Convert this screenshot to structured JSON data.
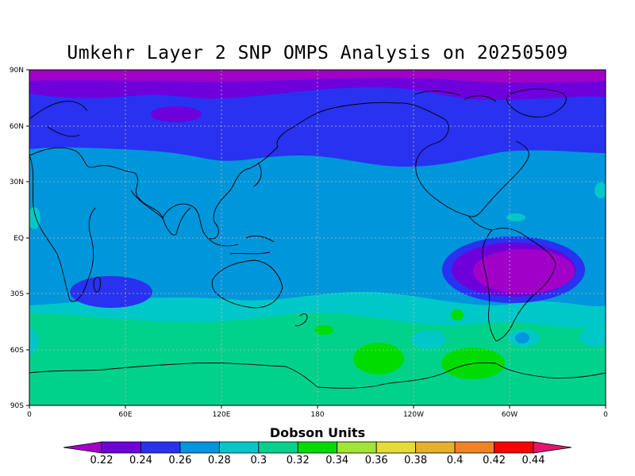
{
  "title": "Umkehr Layer 2 SNP OMPS Analysis on 20250509",
  "colorbar": {
    "title": "Dobson Units",
    "levels": [
      "0.22",
      "0.24",
      "0.26",
      "0.28",
      "0.3",
      "0.32",
      "0.34",
      "0.36",
      "0.38",
      "0.4",
      "0.42",
      "0.44"
    ],
    "colors": [
      "#a000c8",
      "#6e00dc",
      "#2832f0",
      "#0096dc",
      "#00c8c8",
      "#00d28c",
      "#00dc00",
      "#a0e632",
      "#e6dc32",
      "#e6af2d",
      "#f08228",
      "#fa0000",
      "#e6146e"
    ]
  },
  "axes": {
    "lat_labels": [
      "90N",
      "60N",
      "30N",
      "EQ",
      "30S",
      "60S",
      "90S"
    ],
    "lon_labels": [
      "0",
      "60E",
      "120E",
      "180",
      "120W",
      "60W",
      "0"
    ]
  }
}
